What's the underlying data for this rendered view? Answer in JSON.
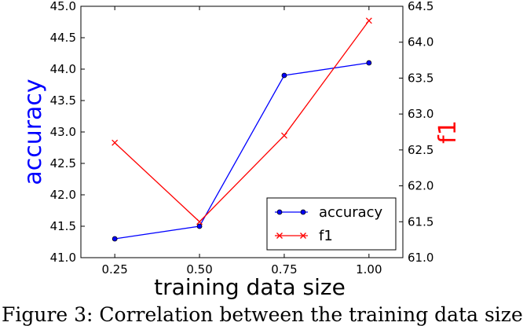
{
  "chart_data": {
    "type": "line",
    "x": [
      0.25,
      0.5,
      0.75,
      1.0
    ],
    "x_tick_labels": [
      "0.25",
      "0.50",
      "0.75",
      "1.00"
    ],
    "xlim": [
      0.15,
      1.1
    ],
    "xlabel": "training data size",
    "series": [
      {
        "name": "accuracy",
        "axis": "left",
        "color": "#0000ff",
        "marker": "circle-star",
        "values": [
          41.3,
          41.5,
          43.9,
          44.1
        ]
      },
      {
        "name": "f1",
        "axis": "right",
        "color": "#ff0000",
        "marker": "x",
        "values": [
          62.6,
          61.5,
          62.7,
          64.3
        ]
      }
    ],
    "y_left": {
      "label": "accuracy",
      "color": "#0000ff",
      "lim": [
        41.0,
        45.0
      ],
      "ticks": [
        "41.0",
        "41.5",
        "42.0",
        "42.5",
        "43.0",
        "43.5",
        "44.0",
        "44.5",
        "45.0"
      ]
    },
    "y_right": {
      "label": "f1",
      "color": "#ff0000",
      "lim": [
        61.0,
        64.5
      ],
      "ticks": [
        "61.0",
        "61.5",
        "62.0",
        "62.5",
        "63.0",
        "63.5",
        "64.0",
        "64.5"
      ]
    },
    "legend": {
      "placement": "lower-right",
      "entries": [
        "accuracy",
        "f1"
      ]
    },
    "grid": false
  },
  "caption": "Figure 3: Correlation between the training data size"
}
